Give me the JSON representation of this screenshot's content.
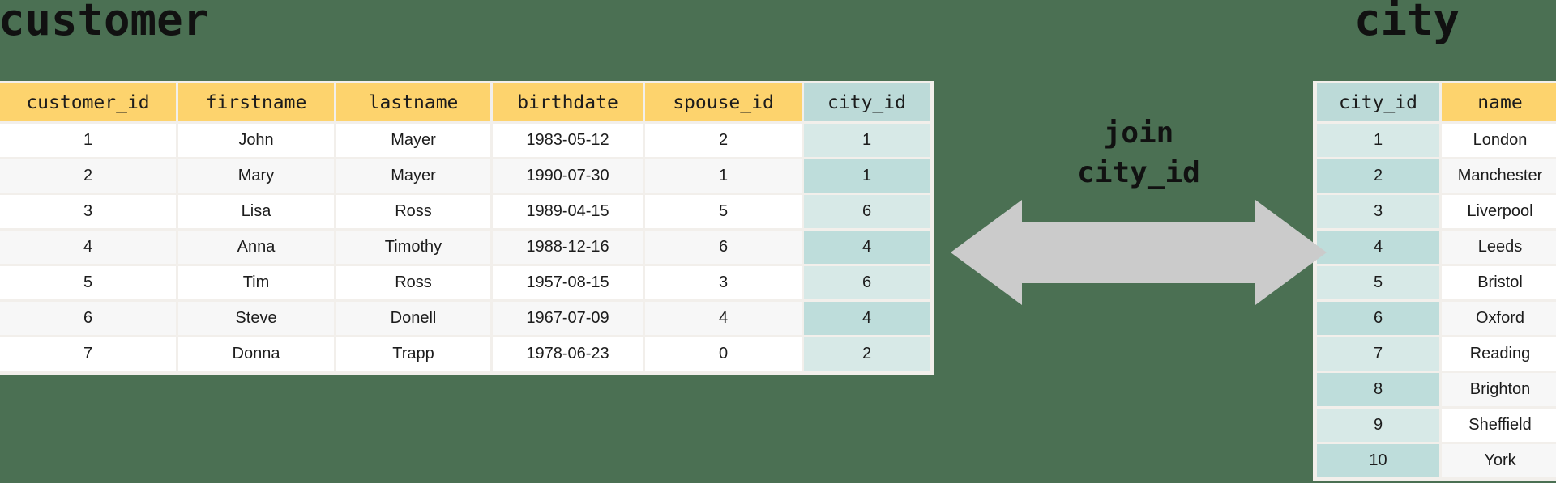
{
  "customer_table": {
    "title": "customer",
    "key_column": "city_id",
    "columns": [
      "customer_id",
      "firstname",
      "lastname",
      "birthdate",
      "spouse_id",
      "city_id"
    ],
    "rows": [
      [
        "1",
        "John",
        "Mayer",
        "1983-05-12",
        "2",
        "1"
      ],
      [
        "2",
        "Mary",
        "Mayer",
        "1990-07-30",
        "1",
        "1"
      ],
      [
        "3",
        "Lisa",
        "Ross",
        "1989-04-15",
        "5",
        "6"
      ],
      [
        "4",
        "Anna",
        "Timothy",
        "1988-12-16",
        "6",
        "4"
      ],
      [
        "5",
        "Tim",
        "Ross",
        "1957-08-15",
        "3",
        "6"
      ],
      [
        "6",
        "Steve",
        "Donell",
        "1967-07-09",
        "4",
        "4"
      ],
      [
        "7",
        "Donna",
        "Trapp",
        "1978-06-23",
        "0",
        "2"
      ]
    ]
  },
  "city_table": {
    "title": "city",
    "key_column": "city_id",
    "columns": [
      "city_id",
      "name"
    ],
    "rows": [
      [
        "1",
        "London"
      ],
      [
        "2",
        "Manchester"
      ],
      [
        "3",
        "Liverpool"
      ],
      [
        "4",
        "Leeds"
      ],
      [
        "5",
        "Bristol"
      ],
      [
        "6",
        "Oxford"
      ],
      [
        "7",
        "Reading"
      ],
      [
        "8",
        "Brighton"
      ],
      [
        "9",
        "Sheffield"
      ],
      [
        "10",
        "York"
      ]
    ]
  },
  "join": {
    "label_line1": "join",
    "label_line2": "city_id",
    "arrow_type": "double-headed"
  },
  "colors": {
    "background": "#4b7053",
    "header_yellow": "#fdd36d",
    "key_header_teal": "#bcdad8",
    "key_cell_light": "#d7e9e7",
    "key_cell_dark": "#bedddb",
    "row_white": "#ffffff",
    "row_gray": "#f7f7f7",
    "card_border": "#f2efeb",
    "arrow_gray": "#cbcbcb",
    "text": "#111111"
  }
}
